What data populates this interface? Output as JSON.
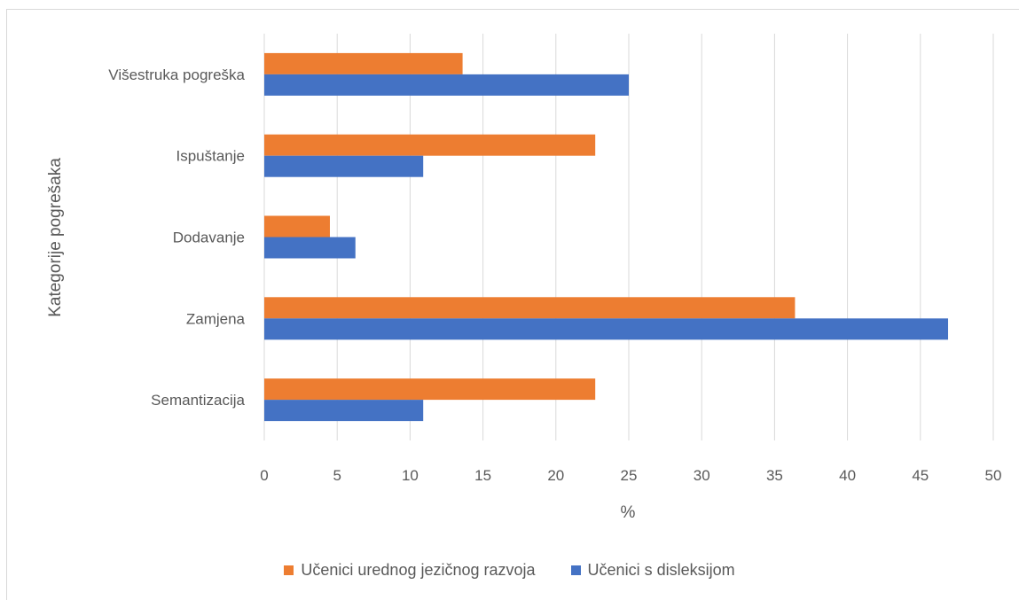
{
  "chart_data": {
    "type": "bar",
    "orientation": "horizontal",
    "categories": [
      "Semantizacija",
      "Zamjena",
      "Dodavanje",
      "Ispuštanje",
      "Višestruka pogreška"
    ],
    "series": [
      {
        "name": "Učenici urednog jezičnog razvoja",
        "color": "#ed7d31",
        "values": [
          22.7,
          36.4,
          4.5,
          22.7,
          13.6
        ]
      },
      {
        "name": "Učenici s disleksijom",
        "color": "#4472c4",
        "values": [
          10.9,
          46.9,
          6.25,
          10.9,
          25.0
        ]
      }
    ],
    "xlabel": "%",
    "ylabel": "Kategorije pogrešaka",
    "xlim": [
      0,
      50
    ],
    "xticks": [
      "0",
      "5",
      "10",
      "15",
      "20",
      "25",
      "30",
      "35",
      "40",
      "45",
      "50"
    ],
    "grid": "vertical",
    "legend": "bottom"
  }
}
